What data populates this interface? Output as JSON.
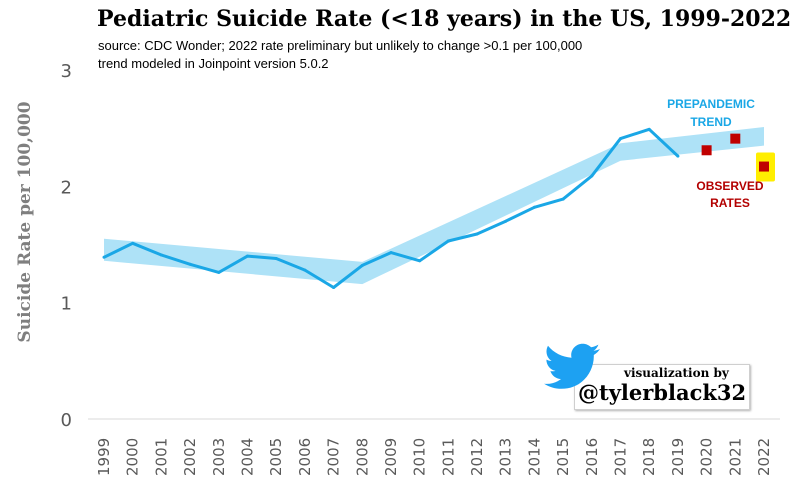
{
  "chart_data": {
    "type": "line",
    "title": "Pediatric Suicide Rate (<18 years) in the US, 1999-2022",
    "subtitle_lines": [
      "source: CDC Wonder; 2022 rate preliminary but unlikely to change >0.1 per 100,000",
      "trend modeled in Joinpoint version 5.0.2"
    ],
    "xlabel": "",
    "ylabel": "Suicide Rate per 100,000",
    "ylim": [
      0,
      3
    ],
    "yticks": [
      "0",
      "1",
      "2",
      "3"
    ],
    "categories": [
      "1999",
      "2000",
      "2001",
      "2002",
      "2003",
      "2004",
      "2005",
      "2006",
      "2007",
      "2008",
      "2009",
      "2010",
      "2011",
      "2012",
      "2013",
      "2014",
      "2015",
      "2016",
      "2017",
      "2018",
      "2019",
      "2020",
      "2021",
      "2022"
    ],
    "series": [
      {
        "x": [
          1999,
          2000,
          2001,
          2002,
          2003,
          2004,
          2005,
          2006,
          2007,
          2008,
          2009,
          2010,
          2011,
          2012,
          2013,
          2014,
          2015,
          2016,
          2017,
          2018,
          2019
        ],
        "values": [
          1.39,
          1.51,
          1.41,
          1.33,
          1.26,
          1.4,
          1.38,
          1.28,
          1.13,
          1.32,
          1.43,
          1.36,
          1.53,
          1.59,
          1.7,
          1.82,
          1.89,
          2.09,
          2.41,
          2.49,
          2.26
        ],
        "color": "#1aa7e6"
      }
    ],
    "observed": {
      "x": [
        2020,
        2021,
        2022
      ],
      "values": [
        2.31,
        2.41,
        2.17
      ],
      "color": "#c00000"
    },
    "trend_band": {
      "x": [
        1999,
        2008,
        2017,
        2022
      ],
      "upper": [
        1.55,
        1.35,
        2.37,
        2.51
      ],
      "lower": [
        1.36,
        1.16,
        2.22,
        2.35
      ],
      "color": "#aee2f7"
    },
    "annotations": [
      {
        "lines": [
          "PREPANDEMIC",
          "TREND"
        ],
        "color": "#1aa7e6"
      },
      {
        "lines": [
          "OBSERVED",
          "RATES"
        ],
        "color": "#b30000"
      }
    ],
    "grid": false,
    "legend": "none"
  },
  "credit": {
    "small": "visualization by",
    "handle": "@tylerblack32",
    "icon": "bird-icon"
  }
}
